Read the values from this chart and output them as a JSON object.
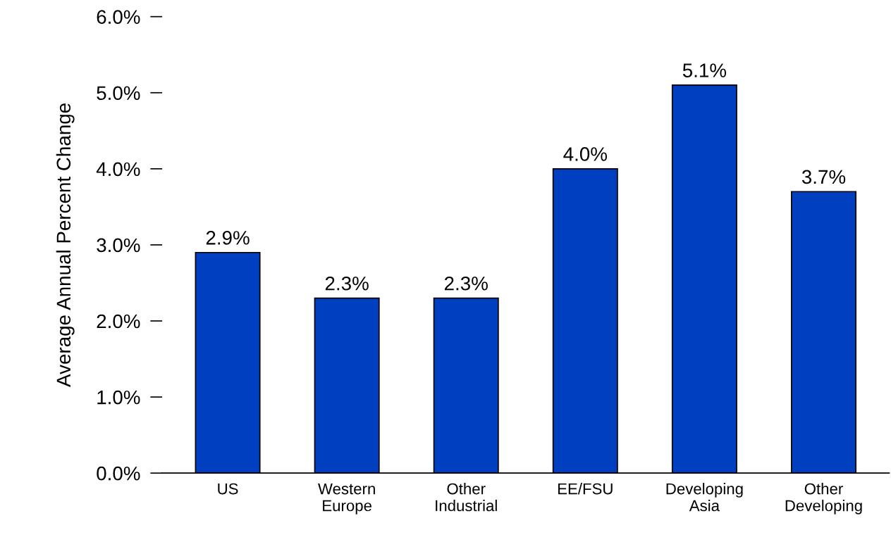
{
  "chart_data": {
    "type": "bar",
    "ylabel": "Average Annual Percent Change",
    "categories": [
      "US",
      "Western\nEurope",
      "Other\nIndustrial",
      "EE/FSU",
      "Developing\nAsia",
      "Other\nDeveloping"
    ],
    "values": [
      2.9,
      2.3,
      2.3,
      4.0,
      5.1,
      3.7
    ],
    "value_labels": [
      "2.9%",
      "2.3%",
      "2.3%",
      "4.0%",
      "5.1%",
      "3.7%"
    ],
    "color": "#0040c0",
    "ylim": [
      0,
      6
    ],
    "yticks": [
      {
        "value": 0,
        "label": "0.0%"
      },
      {
        "value": 1,
        "label": "1.0%"
      },
      {
        "value": 2,
        "label": "2.0%"
      },
      {
        "value": 3,
        "label": "3.0%"
      },
      {
        "value": 4,
        "label": "4.0%"
      },
      {
        "value": 5,
        "label": "5.0%"
      },
      {
        "value": 6,
        "label": "6.0%"
      }
    ],
    "grid": false,
    "legend": false
  }
}
